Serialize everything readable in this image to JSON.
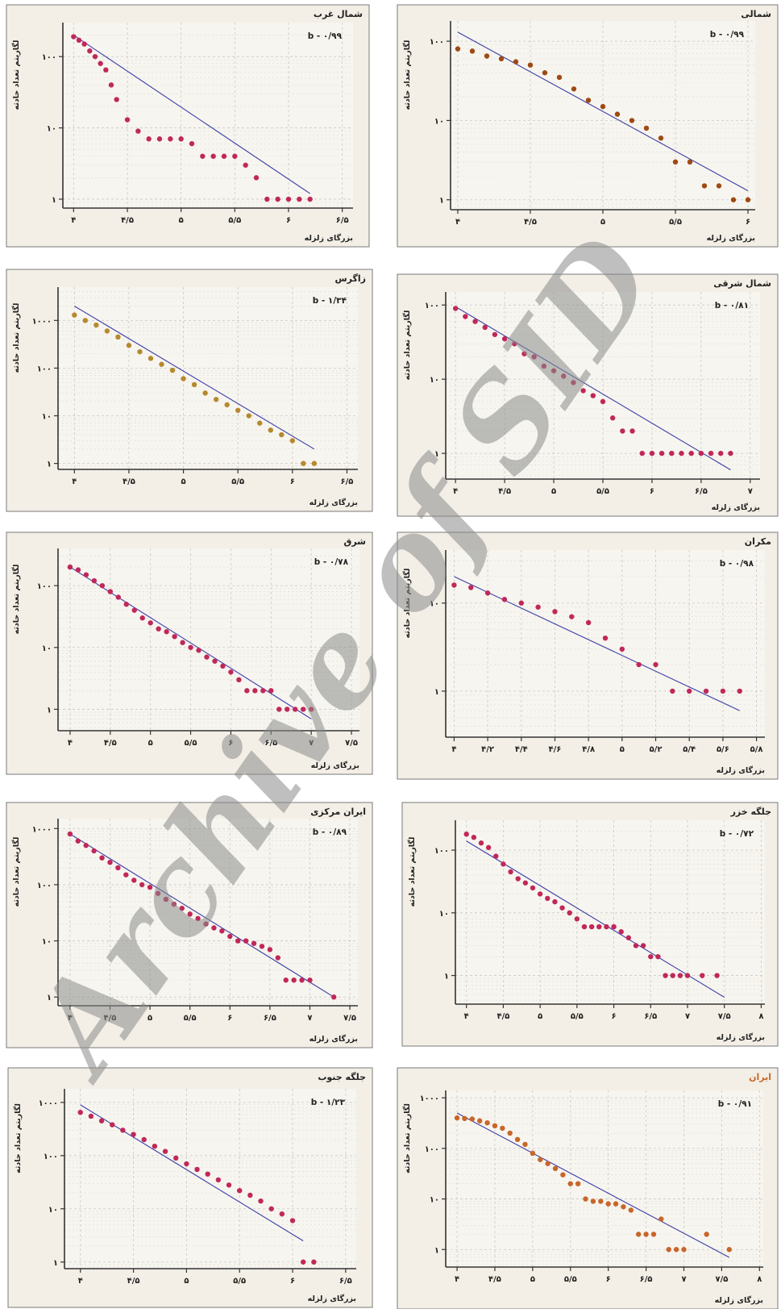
{
  "watermark": "Archive of SID",
  "common": {
    "xlabel": "بزرگای زلزله",
    "ylabel": "لگاریتم تعداد حادثه"
  },
  "colors": {
    "crimson": "#c0285a",
    "brown": "#9e4a14",
    "olive": "#b5892e",
    "orange": "#c8662a",
    "line": "#3a3fa8"
  },
  "chart_data": [
    {
      "type": "scatter",
      "title": "شمالی",
      "b_label": "b - ۰/۹۹",
      "xticks": [
        4,
        4.5,
        5,
        5.5,
        6
      ],
      "xtick_labels": [
        "۴",
        "۴/۵",
        "۵",
        "۵/۵",
        "۶"
      ],
      "yticks": [
        1,
        10,
        100
      ],
      "ytick_labels": [
        "۱",
        "۱۰",
        "۱۰۰"
      ],
      "xlim": [
        3.95,
        6.05
      ],
      "ylim": [
        0.75,
        180
      ],
      "color": "brown",
      "x": [
        4.0,
        4.1,
        4.2,
        4.3,
        4.4,
        4.5,
        4.6,
        4.7,
        4.8,
        4.9,
        5.0,
        5.1,
        5.2,
        5.3,
        5.4,
        5.5,
        5.6,
        5.7,
        5.8,
        5.9,
        6.0
      ],
      "y": [
        80,
        75,
        65,
        60,
        55,
        50,
        40,
        35,
        25,
        18,
        15,
        12,
        10,
        8,
        6,
        3,
        3,
        1.5,
        1.5,
        1,
        1
      ],
      "fit": [
        [
          4.0,
          130
        ],
        [
          6.0,
          1.3
        ]
      ]
    },
    {
      "type": "scatter",
      "title": "شمال غرب",
      "b_label": "b - ۰/۹۹",
      "xticks": [
        4,
        4.5,
        5,
        5.5,
        6,
        6.5
      ],
      "xtick_labels": [
        "۴",
        "۴/۵",
        "۵",
        "۵/۵",
        "۶",
        "۶/۵"
      ],
      "yticks": [
        1,
        10,
        100
      ],
      "ytick_labels": [
        "۱",
        "۱۰",
        "۱۰۰"
      ],
      "xlim": [
        3.9,
        6.6
      ],
      "ylim": [
        0.75,
        300
      ],
      "color": "crimson",
      "x": [
        4.0,
        4.05,
        4.1,
        4.15,
        4.2,
        4.25,
        4.3,
        4.35,
        4.4,
        4.5,
        4.6,
        4.7,
        4.8,
        4.9,
        5.0,
        5.1,
        5.2,
        5.3,
        5.4,
        5.5,
        5.6,
        5.7,
        5.8,
        5.9,
        6.0,
        6.1,
        6.2
      ],
      "y": [
        190,
        170,
        150,
        120,
        100,
        80,
        65,
        40,
        25,
        13,
        9,
        7,
        7,
        7,
        7,
        6,
        4,
        4,
        4,
        4,
        3,
        2,
        1,
        1,
        1,
        1,
        1
      ],
      "fit": [
        [
          4.0,
          200
        ],
        [
          6.2,
          1.2
        ]
      ]
    },
    {
      "type": "scatter",
      "title": "شمال شرقی",
      "b_label": "b - ۰/۸۱",
      "xticks": [
        4,
        4.5,
        5,
        5.5,
        6,
        6.5,
        7
      ],
      "xtick_labels": [
        "۴",
        "۴/۵",
        "۵",
        "۵/۵",
        "۶",
        "۶/۵",
        "۷"
      ],
      "yticks": [
        1,
        10,
        100
      ],
      "ytick_labels": [
        "۱",
        "۱۰",
        "۱۰۰"
      ],
      "xlim": [
        3.9,
        7.1
      ],
      "ylim": [
        0.45,
        150
      ],
      "color": "crimson",
      "x": [
        4.0,
        4.1,
        4.2,
        4.3,
        4.4,
        4.5,
        4.6,
        4.7,
        4.8,
        4.9,
        5.0,
        5.1,
        5.2,
        5.3,
        5.4,
        5.5,
        5.6,
        5.7,
        5.8,
        5.9,
        6.0,
        6.1,
        6.2,
        6.3,
        6.4,
        6.5,
        6.6,
        6.7,
        6.8
      ],
      "y": [
        90,
        70,
        60,
        50,
        40,
        35,
        30,
        22,
        20,
        15,
        13,
        11,
        9,
        7,
        6,
        5,
        3,
        2,
        2,
        1,
        1,
        1,
        1,
        1,
        1,
        1,
        1,
        1,
        1
      ],
      "fit": [
        [
          4.0,
          95
        ],
        [
          6.8,
          0.6
        ]
      ]
    },
    {
      "type": "scatter",
      "title": "زاگرس",
      "b_label": "b - ۱/۳۴",
      "xticks": [
        4,
        4.5,
        5,
        5.5,
        6,
        6.5
      ],
      "xtick_labels": [
        "۴",
        "۴/۵",
        "۵",
        "۵/۵",
        "۶",
        "۶/۵"
      ],
      "yticks": [
        1,
        10,
        100,
        1000
      ],
      "ytick_labels": [
        "۱",
        "۱۰",
        "۱۰۰",
        "۱۰۰۰"
      ],
      "xlim": [
        3.85,
        6.6
      ],
      "ylim": [
        0.75,
        5000
      ],
      "color": "olive",
      "x": [
        4.0,
        4.1,
        4.2,
        4.3,
        4.4,
        4.5,
        4.6,
        4.7,
        4.8,
        4.9,
        5.0,
        5.1,
        5.2,
        5.3,
        5.4,
        5.5,
        5.6,
        5.7,
        5.8,
        5.9,
        6.0,
        6.1,
        6.2
      ],
      "y": [
        1300,
        1000,
        800,
        600,
        450,
        300,
        220,
        160,
        120,
        90,
        60,
        45,
        30,
        22,
        17,
        13,
        10,
        7,
        5,
        4,
        3,
        1,
        1
      ],
      "fit": [
        [
          4.0,
          2000
        ],
        [
          6.2,
          2
        ]
      ]
    },
    {
      "type": "scatter",
      "title": "مکران",
      "b_label": "b - ۰/۹۸",
      "xticks": [
        4,
        4.2,
        4.4,
        4.6,
        4.8,
        5,
        5.2,
        5.4,
        5.6,
        5.8
      ],
      "xtick_labels": [
        "۴",
        "۴/۲",
        "۴/۴",
        "۴/۶",
        "۴/۸",
        "۵",
        "۵/۲",
        "۵/۴",
        "۵/۶",
        "۵/۸"
      ],
      "yticks": [
        1,
        10
      ],
      "ytick_labels": [
        "۱",
        "۱۰"
      ],
      "xlim": [
        3.95,
        5.85
      ],
      "ylim": [
        0.3,
        40
      ],
      "color": "crimson",
      "x": [
        4.0,
        4.1,
        4.2,
        4.3,
        4.4,
        4.5,
        4.6,
        4.7,
        4.8,
        4.9,
        5.0,
        5.1,
        5.2,
        5.3,
        5.4,
        5.5,
        5.6,
        5.7
      ],
      "y": [
        16,
        15,
        13,
        11,
        10,
        9,
        8,
        7,
        6,
        4,
        3,
        2,
        2,
        1,
        1,
        1,
        1,
        1
      ],
      "fit": [
        [
          4.0,
          20
        ],
        [
          5.7,
          0.6
        ]
      ]
    },
    {
      "type": "scatter",
      "title": "شرق",
      "b_label": "b - ۰/۷۸",
      "xticks": [
        4,
        4.5,
        5,
        5.5,
        6,
        6.5,
        7,
        7.5
      ],
      "xtick_labels": [
        "۴",
        "۴/۵",
        "۵",
        "۵/۵",
        "۶",
        "۶/۵",
        "۷",
        "۷/۵"
      ],
      "yticks": [
        1,
        10,
        100
      ],
      "ytick_labels": [
        "۱",
        "۱۰",
        "۱۰۰"
      ],
      "xlim": [
        3.85,
        7.6
      ],
      "ylim": [
        0.45,
        400
      ],
      "color": "crimson",
      "x": [
        4.0,
        4.1,
        4.2,
        4.3,
        4.4,
        4.5,
        4.6,
        4.7,
        4.8,
        4.9,
        5.0,
        5.1,
        5.2,
        5.3,
        5.4,
        5.5,
        5.6,
        5.7,
        5.8,
        5.9,
        6.0,
        6.1,
        6.2,
        6.3,
        6.4,
        6.5,
        6.6,
        6.7,
        6.8,
        6.9,
        7.0
      ],
      "y": [
        200,
        180,
        150,
        120,
        100,
        80,
        65,
        50,
        40,
        30,
        25,
        20,
        18,
        15,
        12,
        10,
        9,
        7,
        6,
        5,
        4,
        3,
        2,
        2,
        2,
        2,
        1,
        1,
        1,
        1,
        1
      ],
      "fit": [
        [
          4.0,
          200
        ],
        [
          7.0,
          0.7
        ]
      ]
    },
    {
      "type": "scatter",
      "title": "جلگه خزر",
      "b_label": "b - ۰/۷۲",
      "xticks": [
        4,
        4.5,
        5,
        5.5,
        6,
        6.5,
        7,
        7.5,
        8
      ],
      "xtick_labels": [
        "۴",
        "۴/۵",
        "۵",
        "۵/۵",
        "۶",
        "۶/۵",
        "۷",
        "۷/۵",
        "۸"
      ],
      "yticks": [
        1,
        10,
        100
      ],
      "ytick_labels": [
        "۱",
        "۱۰",
        "۱۰۰"
      ],
      "xlim": [
        3.85,
        8.05
      ],
      "ylim": [
        0.35,
        300
      ],
      "color": "crimson",
      "x": [
        4.0,
        4.1,
        4.2,
        4.3,
        4.4,
        4.5,
        4.6,
        4.7,
        4.8,
        4.9,
        5.0,
        5.1,
        5.2,
        5.3,
        5.4,
        5.5,
        5.6,
        5.7,
        5.8,
        5.9,
        6.0,
        6.1,
        6.2,
        6.3,
        6.4,
        6.5,
        6.6,
        6.7,
        6.8,
        6.9,
        7.0,
        7.2,
        7.4
      ],
      "y": [
        180,
        160,
        130,
        110,
        80,
        60,
        45,
        35,
        30,
        25,
        20,
        17,
        15,
        12,
        10,
        8,
        6,
        6,
        6,
        6,
        6,
        5,
        4,
        3,
        3,
        2,
        2,
        1,
        1,
        1,
        1,
        1,
        1
      ],
      "fit": [
        [
          4.0,
          140
        ],
        [
          7.5,
          0.45
        ]
      ]
    },
    {
      "type": "scatter",
      "title": "ایران مرکزی",
      "b_label": "b - ۰/۸۹",
      "xticks": [
        4,
        4.5,
        5,
        5.5,
        6,
        6.5,
        7,
        7.5
      ],
      "xtick_labels": [
        "۴",
        "۴/۵",
        "۵",
        "۵/۵",
        "۶",
        "۶/۵",
        "۷",
        "۷/۵"
      ],
      "yticks": [
        1,
        10,
        100,
        1000
      ],
      "ytick_labels": [
        "۱",
        "۱۰",
        "۱۰۰",
        "۱۰۰۰"
      ],
      "xlim": [
        3.85,
        7.6
      ],
      "ylim": [
        0.7,
        1500
      ],
      "color": "crimson",
      "x": [
        4.0,
        4.1,
        4.2,
        4.3,
        4.4,
        4.5,
        4.6,
        4.7,
        4.8,
        4.9,
        5.0,
        5.1,
        5.2,
        5.3,
        5.4,
        5.5,
        5.6,
        5.7,
        5.8,
        5.9,
        6.0,
        6.1,
        6.2,
        6.3,
        6.4,
        6.5,
        6.6,
        6.7,
        6.8,
        6.9,
        7.0,
        7.3
      ],
      "y": [
        800,
        600,
        500,
        400,
        300,
        250,
        200,
        150,
        120,
        100,
        90,
        70,
        55,
        45,
        38,
        30,
        25,
        20,
        17,
        15,
        12,
        10,
        10,
        9,
        8,
        7,
        5,
        2,
        2,
        2,
        2,
        1
      ],
      "fit": [
        [
          4.0,
          800
        ],
        [
          7.3,
          1
        ]
      ]
    },
    {
      "type": "scatter",
      "title": "ایران",
      "b_label": "b - ۰/۹۱",
      "xticks": [
        4,
        4.5,
        5,
        5.5,
        6,
        6.5,
        7,
        7.5,
        8
      ],
      "xtick_labels": [
        "۴",
        "۴/۵",
        "۵",
        "۵/۵",
        "۶",
        "۶/۵",
        "۷",
        "۷/۵",
        "۸"
      ],
      "yticks": [
        1,
        10,
        100,
        1000
      ],
      "ytick_labels": [
        "۱",
        "۱۰",
        "۱۰۰",
        "۱۰۰۰"
      ],
      "xlim": [
        3.85,
        8.05
      ],
      "ylim": [
        0.45,
        1400
      ],
      "color": "orange",
      "x": [
        4.0,
        4.1,
        4.2,
        4.3,
        4.4,
        4.5,
        4.6,
        4.7,
        4.8,
        4.9,
        5.0,
        5.1,
        5.2,
        5.3,
        5.4,
        5.5,
        5.6,
        5.7,
        5.8,
        5.9,
        6.0,
        6.1,
        6.2,
        6.3,
        6.4,
        6.5,
        6.6,
        6.7,
        6.8,
        6.9,
        7.0,
        7.3,
        7.6
      ],
      "y": [
        400,
        390,
        380,
        350,
        320,
        280,
        250,
        200,
        150,
        120,
        80,
        60,
        50,
        40,
        30,
        20,
        20,
        10,
        9,
        9,
        8,
        8,
        7,
        6,
        2,
        2,
        2,
        4,
        1,
        1,
        1,
        2,
        1
      ],
      "fit": [
        [
          4.0,
          500
        ],
        [
          7.6,
          0.7
        ]
      ]
    },
    {
      "type": "scatter",
      "title": "جلگه جنوب",
      "b_label": "b - ۱/۲۳",
      "xticks": [
        4,
        4.5,
        5,
        5.5,
        6,
        6.5
      ],
      "xtick_labels": [
        "۴",
        "۴/۵",
        "۵",
        "۵/۵",
        "۶",
        "۶/۵"
      ],
      "yticks": [
        1,
        10,
        100,
        1000
      ],
      "ytick_labels": [
        "۱",
        "۱۰",
        "۱۰۰",
        "۱۰۰۰"
      ],
      "xlim": [
        3.85,
        6.6
      ],
      "ylim": [
        0.75,
        1800
      ],
      "color": "crimson",
      "x": [
        4.0,
        4.1,
        4.2,
        4.3,
        4.4,
        4.5,
        4.6,
        4.7,
        4.8,
        4.9,
        5.0,
        5.1,
        5.2,
        5.3,
        5.4,
        5.5,
        5.6,
        5.7,
        5.8,
        5.9,
        6.0,
        6.1,
        6.2
      ],
      "y": [
        650,
        550,
        450,
        380,
        300,
        250,
        200,
        150,
        120,
        90,
        70,
        55,
        45,
        35,
        28,
        22,
        18,
        14,
        10,
        8,
        6,
        1,
        1
      ],
      "fit": [
        [
          4.0,
          900
        ],
        [
          6.1,
          2.5
        ]
      ]
    }
  ]
}
